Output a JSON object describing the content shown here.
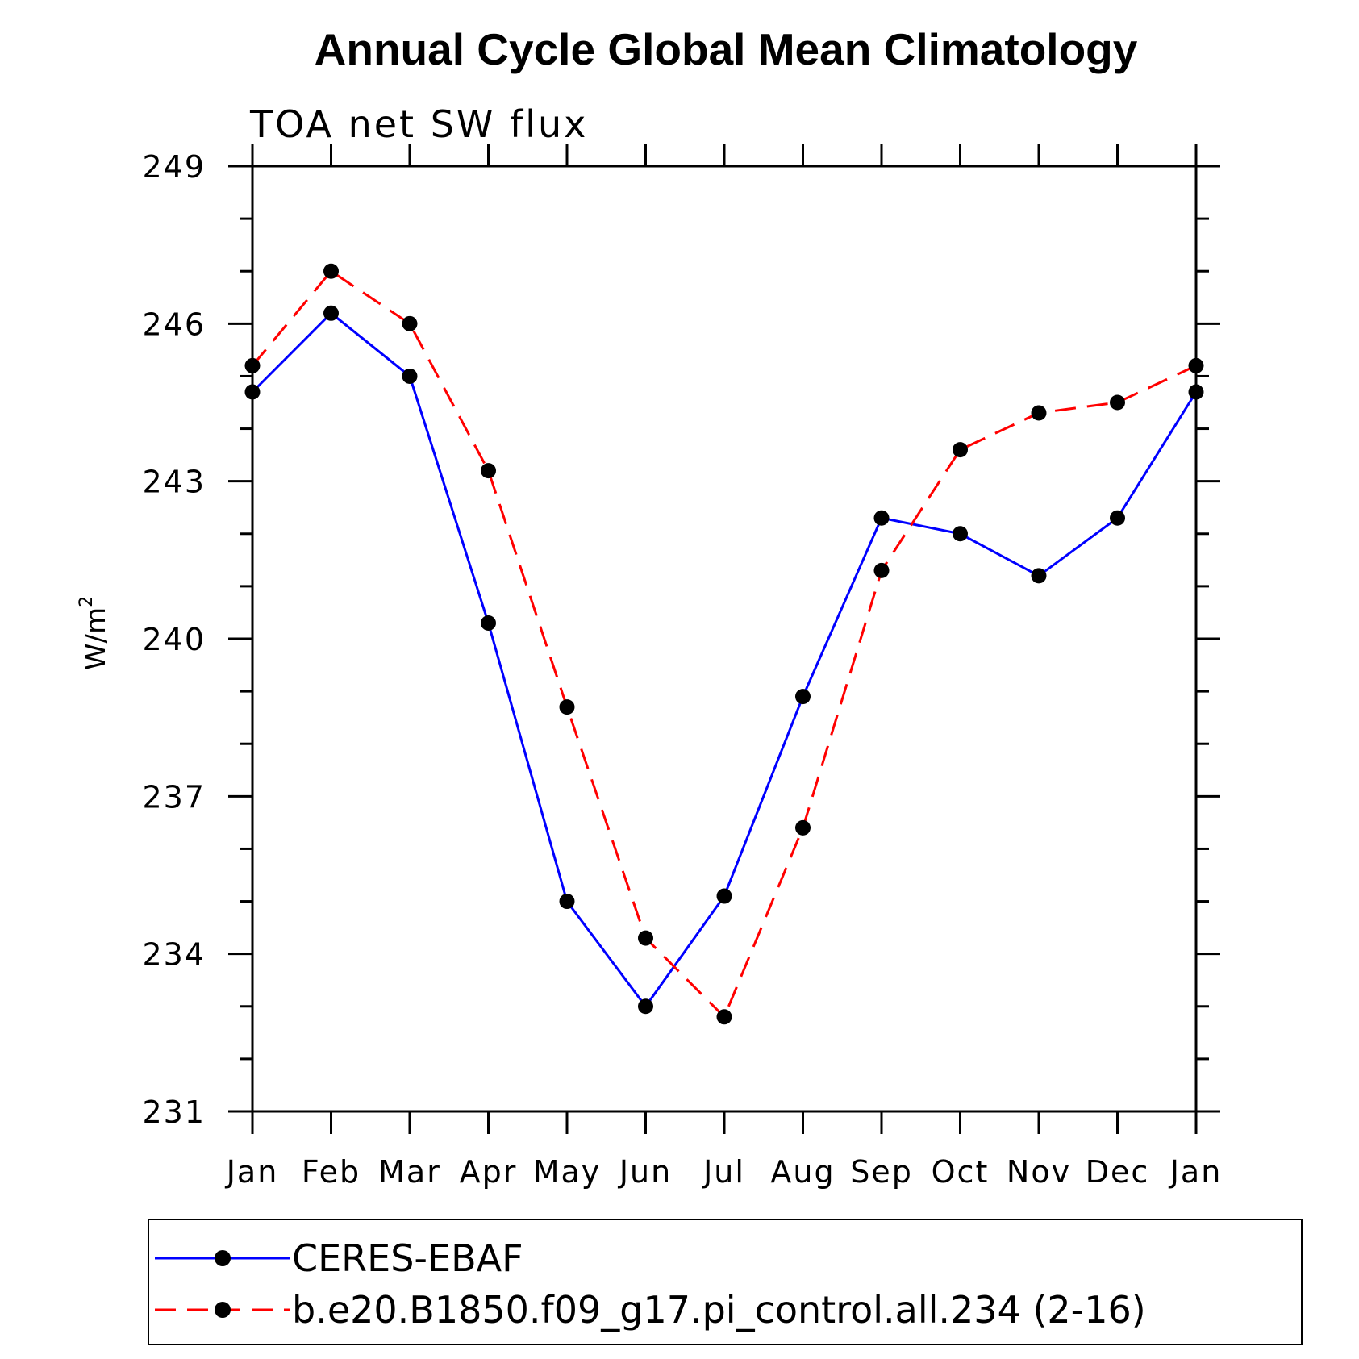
{
  "chart_data": {
    "type": "line",
    "title": "Annual Cycle Global Mean Climatology",
    "subtitle": "TOA net SW flux",
    "ylabel": "W/m",
    "ylabel_superscript": "2",
    "xlabel": "",
    "categories": [
      "Jan",
      "Feb",
      "Mar",
      "Apr",
      "May",
      "Jun",
      "Jul",
      "Aug",
      "Sep",
      "Oct",
      "Nov",
      "Dec",
      "Jan"
    ],
    "ylim": [
      231,
      249
    ],
    "yticks": [
      "231",
      "234",
      "237",
      "240",
      "243",
      "246",
      "249"
    ],
    "grid": false,
    "legend_position": "bottom",
    "series": [
      {
        "name": "CERES-EBAF",
        "color": "#0000ff",
        "line_style": "solid",
        "values": [
          244.7,
          246.2,
          245.0,
          240.3,
          235.0,
          233.0,
          235.1,
          238.9,
          242.3,
          242.0,
          241.2,
          242.3,
          244.7
        ]
      },
      {
        "name": "b.e20.B1850.f09_g17.pi_control.all.234 (2-16)",
        "color": "#ff0000",
        "line_style": "dashed",
        "values": [
          245.2,
          247.0,
          246.0,
          243.2,
          238.7,
          234.3,
          232.8,
          236.4,
          241.3,
          243.6,
          244.3,
          244.5,
          245.2
        ]
      }
    ]
  }
}
